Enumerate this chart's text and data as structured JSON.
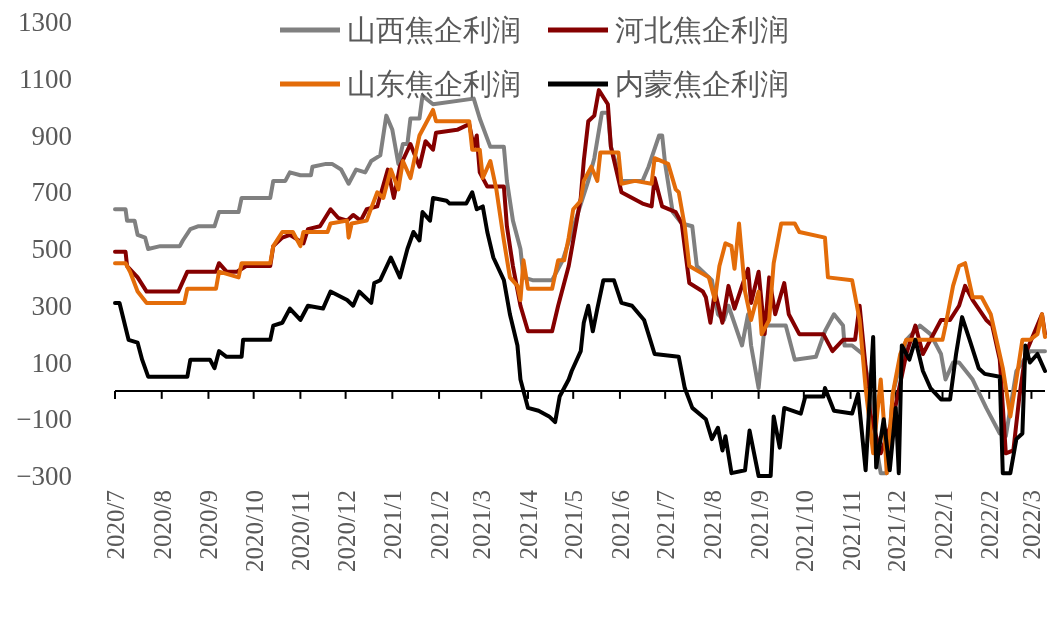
{
  "chart_data": {
    "type": "line",
    "legend": "top",
    "xlim": [
      "2020-07-01",
      "2022-03-10"
    ],
    "xticks": [
      {
        "value": "2020-07",
        "label": "2020/7"
      },
      {
        "value": "2020-08",
        "label": "2020/8"
      },
      {
        "value": "2020-09",
        "label": "2020/9"
      },
      {
        "value": "2020-10",
        "label": "2020/10"
      },
      {
        "value": "2020-11",
        "label": "2020/11"
      },
      {
        "value": "2020-12",
        "label": "2020/12"
      },
      {
        "value": "2021-01",
        "label": "2021/1"
      },
      {
        "value": "2021-02",
        "label": "2021/2"
      },
      {
        "value": "2021-03",
        "label": "2021/3"
      },
      {
        "value": "2021-04",
        "label": "2021/4"
      },
      {
        "value": "2021-05",
        "label": "2021/5"
      },
      {
        "value": "2021-06",
        "label": "2021/6"
      },
      {
        "value": "2021-07",
        "label": "2021/7"
      },
      {
        "value": "2021-08",
        "label": "2021/8"
      },
      {
        "value": "2021-09",
        "label": "2021/9"
      },
      {
        "value": "2021-10",
        "label": "2021/10"
      },
      {
        "value": "2021-11",
        "label": "2021/11"
      },
      {
        "value": "2021-12",
        "label": "2021/12"
      },
      {
        "value": "2022-01",
        "label": "2022/1"
      },
      {
        "value": "2022-02",
        "label": "2022/2"
      },
      {
        "value": "2022-03",
        "label": "2022/3"
      }
    ],
    "ylim": [
      -300,
      1300
    ],
    "yticks": [
      -300,
      -100,
      100,
      300,
      500,
      700,
      900,
      1100,
      1300
    ],
    "series": [
      {
        "name": "山西焦企利润",
        "color": "#808080",
        "x": [
          "2020-07-01",
          "2020-07-08",
          "2020-07-09",
          "2020-07-14",
          "2020-07-16",
          "2020-07-21",
          "2020-07-23",
          "2020-07-31",
          "2020-08-13",
          "2020-08-15",
          "2020-08-20",
          "2020-08-25",
          "2020-09-05",
          "2020-09-08",
          "2020-09-21",
          "2020-09-23",
          "2020-10-12",
          "2020-10-14",
          "2020-10-22",
          "2020-10-25",
          "2020-11-01",
          "2020-11-08",
          "2020-11-09",
          "2020-11-18",
          "2020-11-22",
          "2020-11-28",
          "2020-12-03",
          "2020-12-08",
          "2020-12-14",
          "2020-12-18",
          "2020-12-24",
          "2020-12-28",
          "2021-01-01",
          "2021-01-05",
          "2021-01-08",
          "2021-01-11",
          "2021-01-13",
          "2021-01-19",
          "2021-01-21",
          "2021-01-28",
          "2021-02-24",
          "2021-02-28",
          "2021-03-07",
          "2021-03-16",
          "2021-03-18",
          "2021-03-22",
          "2021-03-27",
          "2021-03-29",
          "2021-04-04",
          "2021-04-17",
          "2021-04-24",
          "2021-05-11",
          "2021-05-15",
          "2021-05-20",
          "2021-05-24",
          "2021-05-26",
          "2021-06-02",
          "2021-06-16",
          "2021-06-20",
          "2021-06-27",
          "2021-06-29",
          "2021-07-01",
          "2021-07-06",
          "2021-07-12",
          "2021-07-19",
          "2021-07-22",
          "2021-08-01",
          "2021-08-05",
          "2021-08-09",
          "2021-08-12",
          "2021-08-21",
          "2021-08-25",
          "2021-08-27",
          "2021-09-01",
          "2021-09-05",
          "2021-09-19",
          "2021-09-25",
          "2021-10-09",
          "2021-10-15",
          "2021-10-21",
          "2021-10-27",
          "2021-10-28",
          "2021-11-02",
          "2021-11-09",
          "2021-11-14",
          "2021-11-17",
          "2021-11-21",
          "2021-11-25",
          "2021-11-29",
          "2021-12-08",
          "2021-12-17",
          "2021-12-24",
          "2021-12-31",
          "2022-01-03",
          "2022-01-08",
          "2022-01-12",
          "2022-01-21",
          "2022-01-30",
          "2022-02-08",
          "2022-02-12",
          "2022-02-19",
          "2022-02-28",
          "2022-03-10"
        ],
        "values": [
          640,
          640,
          600,
          600,
          550,
          540,
          500,
          510,
          510,
          530,
          570,
          580,
          580,
          630,
          630,
          680,
          680,
          740,
          740,
          770,
          760,
          760,
          790,
          800,
          800,
          780,
          730,
          780,
          770,
          810,
          830,
          970,
          920,
          800,
          870,
          870,
          960,
          960,
          1040,
          1010,
          1030,
          960,
          860,
          860,
          740,
          600,
          500,
          400,
          390,
          390,
          460,
          740,
          820,
          980,
          980,
          860,
          740,
          740,
          790,
          900,
          900,
          800,
          630,
          590,
          580,
          440,
          390,
          270,
          250,
          300,
          160,
          270,
          160,
          10,
          230,
          230,
          110,
          120,
          210,
          270,
          230,
          160,
          160,
          130,
          10,
          -160,
          -290,
          -290,
          -10,
          180,
          230,
          200,
          130,
          40,
          100,
          100,
          40,
          -60,
          -150,
          -160,
          70,
          140,
          140
        ]
      },
      {
        "name": "河北焦企利润",
        "color": "#850000",
        "x": [
          "2020-07-01",
          "2020-07-08",
          "2020-07-09",
          "2020-07-16",
          "2020-07-22",
          "2020-08-12",
          "2020-08-18",
          "2020-09-06",
          "2020-09-08",
          "2020-09-13",
          "2020-09-20",
          "2020-09-26",
          "2020-10-12",
          "2020-10-14",
          "2020-10-20",
          "2020-10-25",
          "2020-11-03",
          "2020-11-06",
          "2020-11-14",
          "2020-11-21",
          "2020-11-26",
          "2020-12-02",
          "2020-12-06",
          "2020-12-11",
          "2020-12-15",
          "2020-12-22",
          "2020-12-29",
          "2021-01-02",
          "2021-01-06",
          "2021-01-13",
          "2021-01-19",
          "2021-01-23",
          "2021-01-28",
          "2021-01-30",
          "2021-02-13",
          "2021-02-21",
          "2021-02-24",
          "2021-02-26",
          "2021-02-28",
          "2021-03-05",
          "2021-03-16",
          "2021-03-18",
          "2021-03-22",
          "2021-03-27",
          "2021-04-01",
          "2021-04-17",
          "2021-04-21",
          "2021-04-28",
          "2021-05-02",
          "2021-05-06",
          "2021-05-08",
          "2021-05-11",
          "2021-05-15",
          "2021-05-18",
          "2021-05-24",
          "2021-05-26",
          "2021-06-02",
          "2021-06-16",
          "2021-06-22",
          "2021-06-24",
          "2021-06-29",
          "2021-07-08",
          "2021-07-12",
          "2021-07-17",
          "2021-07-26",
          "2021-07-28",
          "2021-07-31",
          "2021-08-03",
          "2021-08-08",
          "2021-08-12",
          "2021-08-16",
          "2021-08-21",
          "2021-08-25",
          "2021-08-27",
          "2021-09-01",
          "2021-09-05",
          "2021-09-08",
          "2021-09-12",
          "2021-09-18",
          "2021-09-21",
          "2021-09-28",
          "2021-10-14",
          "2021-10-20",
          "2021-10-27",
          "2021-11-04",
          "2021-11-07",
          "2021-11-14",
          "2021-11-21",
          "2021-11-29",
          "2021-12-08",
          "2021-12-14",
          "2021-12-19",
          "2021-12-31",
          "2022-01-06",
          "2022-01-12",
          "2022-01-16",
          "2022-01-21",
          "2022-01-30",
          "2022-02-03",
          "2022-02-08",
          "2022-02-12",
          "2022-02-17",
          "2022-02-21",
          "2022-02-25",
          "2022-03-08",
          "2022-03-10"
        ],
        "values": [
          490,
          490,
          440,
          400,
          350,
          350,
          420,
          420,
          450,
          420,
          420,
          440,
          440,
          510,
          540,
          550,
          520,
          570,
          580,
          640,
          610,
          600,
          620,
          600,
          640,
          650,
          780,
          680,
          790,
          870,
          790,
          880,
          850,
          910,
          920,
          940,
          860,
          900,
          770,
          720,
          720,
          580,
          440,
          300,
          210,
          210,
          300,
          440,
          560,
          680,
          810,
          950,
          970,
          1060,
          1010,
          860,
          700,
          660,
          650,
          750,
          650,
          630,
          590,
          380,
          350,
          330,
          240,
          350,
          240,
          370,
          290,
          370,
          430,
          310,
          420,
          200,
          400,
          270,
          380,
          270,
          200,
          200,
          140,
          180,
          180,
          300,
          -80,
          -220,
          -100,
          130,
          230,
          130,
          250,
          250,
          300,
          370,
          320,
          250,
          230,
          110,
          -220,
          -210,
          -20,
          130,
          270,
          200
        ]
      },
      {
        "name": "山东焦企利润",
        "color": "#e36c09",
        "x": [
          "2020-07-01",
          "2020-07-08",
          "2020-07-11",
          "2020-07-16",
          "2020-07-22",
          "2020-08-16",
          "2020-08-18",
          "2020-09-06",
          "2020-09-08",
          "2020-09-21",
          "2020-09-23",
          "2020-10-12",
          "2020-10-14",
          "2020-10-20",
          "2020-10-27",
          "2020-11-01",
          "2020-11-03",
          "2020-11-19",
          "2020-11-21",
          "2020-12-02",
          "2020-12-03",
          "2020-12-05",
          "2020-12-15",
          "2020-12-17",
          "2020-12-22",
          "2020-12-26",
          "2020-12-31",
          "2021-01-05",
          "2021-01-08",
          "2021-01-13",
          "2021-01-19",
          "2021-01-28",
          "2021-01-30",
          "2021-02-21",
          "2021-02-23",
          "2021-02-28",
          "2021-03-02",
          "2021-03-07",
          "2021-03-11",
          "2021-03-16",
          "2021-03-20",
          "2021-03-25",
          "2021-03-27",
          "2021-03-29",
          "2021-04-01",
          "2021-04-17",
          "2021-04-21",
          "2021-04-25",
          "2021-04-28",
          "2021-05-01",
          "2021-05-06",
          "2021-05-08",
          "2021-05-13",
          "2021-05-17",
          "2021-05-19",
          "2021-05-31",
          "2021-06-02",
          "2021-06-11",
          "2021-06-22",
          "2021-06-24",
          "2021-07-03",
          "2021-07-08",
          "2021-07-10",
          "2021-07-14",
          "2021-07-17",
          "2021-07-30",
          "2021-08-03",
          "2021-08-06",
          "2021-08-10",
          "2021-08-14",
          "2021-08-16",
          "2021-08-19",
          "2021-08-23",
          "2021-08-27",
          "2021-09-01",
          "2021-09-03",
          "2021-09-08",
          "2021-09-11",
          "2021-09-16",
          "2021-09-25",
          "2021-09-28",
          "2021-10-15",
          "2021-10-17",
          "2021-11-02",
          "2021-11-07",
          "2021-11-11",
          "2021-11-16",
          "2021-11-21",
          "2021-11-23",
          "2021-11-25",
          "2021-11-29",
          "2021-12-04",
          "2021-12-08",
          "2021-12-17",
          "2022-01-01",
          "2022-01-03",
          "2022-01-08",
          "2022-01-12",
          "2022-01-16",
          "2022-01-21",
          "2022-01-27",
          "2022-02-02",
          "2022-02-10",
          "2022-02-15",
          "2022-02-19",
          "2022-02-23",
          "2022-02-28",
          "2022-03-05",
          "2022-03-08",
          "2022-03-10"
        ],
        "values": [
          450,
          450,
          420,
          350,
          310,
          310,
          360,
          360,
          420,
          400,
          450,
          450,
          510,
          560,
          560,
          510,
          560,
          560,
          590,
          600,
          540,
          590,
          600,
          630,
          700,
          680,
          780,
          710,
          810,
          750,
          900,
          990,
          950,
          950,
          850,
          850,
          750,
          810,
          710,
          530,
          400,
          370,
          320,
          460,
          360,
          360,
          460,
          460,
          540,
          640,
          670,
          740,
          790,
          740,
          840,
          840,
          730,
          740,
          730,
          820,
          800,
          710,
          700,
          580,
          440,
          400,
          320,
          440,
          520,
          510,
          430,
          590,
          350,
          250,
          350,
          200,
          250,
          450,
          590,
          590,
          560,
          540,
          400,
          390,
          250,
          10,
          -220,
          40,
          -100,
          -290,
          -10,
          130,
          180,
          180,
          180,
          230,
          370,
          440,
          450,
          330,
          330,
          270,
          80,
          -90,
          40,
          180,
          180,
          200,
          270,
          190
        ]
      },
      {
        "name": "内蒙焦企利润",
        "color": "#000000",
        "x": [
          "2020-07-01",
          "2020-07-04",
          "2020-07-10",
          "2020-07-16",
          "2020-07-19",
          "2020-07-23",
          "2020-08-18",
          "2020-08-20",
          "2020-09-02",
          "2020-09-05",
          "2020-09-08",
          "2020-09-13",
          "2020-09-23",
          "2020-09-24",
          "2020-10-12",
          "2020-10-14",
          "2020-10-20",
          "2020-10-25",
          "2020-11-01",
          "2020-11-06",
          "2020-11-16",
          "2020-11-21",
          "2020-12-02",
          "2020-12-06",
          "2020-12-10",
          "2020-12-18",
          "2020-12-20",
          "2020-12-24",
          "2020-12-31",
          "2021-01-06",
          "2021-01-11",
          "2021-01-15",
          "2021-01-19",
          "2021-01-21",
          "2021-01-26",
          "2021-01-28",
          "2021-02-06",
          "2021-02-08",
          "2021-02-19",
          "2021-02-23",
          "2021-02-26",
          "2021-03-02",
          "2021-03-05",
          "2021-03-09",
          "2021-03-16",
          "2021-03-20",
          "2021-03-25",
          "2021-03-27",
          "2021-04-01",
          "2021-04-08",
          "2021-04-15",
          "2021-04-19",
          "2021-04-22",
          "2021-04-28",
          "2021-04-30",
          "2021-05-06",
          "2021-05-08",
          "2021-05-11",
          "2021-05-14",
          "2021-05-17",
          "2021-05-21",
          "2021-05-28",
          "2021-06-02",
          "2021-06-09",
          "2021-06-17",
          "2021-06-24",
          "2021-07-10",
          "2021-07-14",
          "2021-07-19",
          "2021-07-28",
          "2021-08-01",
          "2021-08-05",
          "2021-08-08",
          "2021-08-10",
          "2021-08-14",
          "2021-08-23",
          "2021-08-26",
          "2021-08-29",
          "2021-09-01",
          "2021-09-09",
          "2021-09-11",
          "2021-09-15",
          "2021-09-18",
          "2021-09-29",
          "2021-10-02",
          "2021-10-14",
          "2021-10-15",
          "2021-10-21",
          "2021-11-02",
          "2021-11-06",
          "2021-11-11",
          "2021-11-16",
          "2021-11-18",
          "2021-11-23",
          "2021-11-27",
          "2021-12-01",
          "2021-12-03",
          "2021-12-05",
          "2021-12-10",
          "2021-12-14",
          "2021-12-19",
          "2021-12-24",
          "2021-12-31",
          "2022-01-06",
          "2022-01-10",
          "2022-01-14",
          "2022-01-19",
          "2022-01-25",
          "2022-01-29",
          "2022-02-08",
          "2022-02-10",
          "2022-02-15",
          "2022-02-19",
          "2022-02-23",
          "2022-02-25",
          "2022-02-28",
          "2022-03-05",
          "2022-03-10"
        ],
        "values": [
          310,
          310,
          180,
          170,
          110,
          50,
          50,
          110,
          110,
          80,
          140,
          120,
          120,
          180,
          180,
          230,
          240,
          290,
          250,
          300,
          290,
          350,
          320,
          300,
          350,
          310,
          380,
          390,
          470,
          400,
          500,
          560,
          530,
          630,
          600,
          680,
          670,
          660,
          660,
          700,
          640,
          650,
          560,
          470,
          390,
          270,
          160,
          40,
          -60,
          -70,
          -90,
          -110,
          -20,
          40,
          70,
          140,
          240,
          300,
          210,
          290,
          390,
          390,
          310,
          300,
          250,
          130,
          120,
          10,
          -60,
          -100,
          -170,
          -130,
          -210,
          -160,
          -290,
          -280,
          -140,
          -220,
          -300,
          -300,
          -90,
          -200,
          -60,
          -80,
          -20,
          -20,
          10,
          -70,
          -80,
          -10,
          -280,
          190,
          -270,
          -100,
          -280,
          -60,
          -290,
          160,
          110,
          180,
          70,
          10,
          -30,
          -30,
          130,
          260,
          180,
          80,
          60,
          50,
          -290,
          -290,
          -170,
          -150,
          160,
          100,
          130,
          70
        ]
      }
    ]
  }
}
